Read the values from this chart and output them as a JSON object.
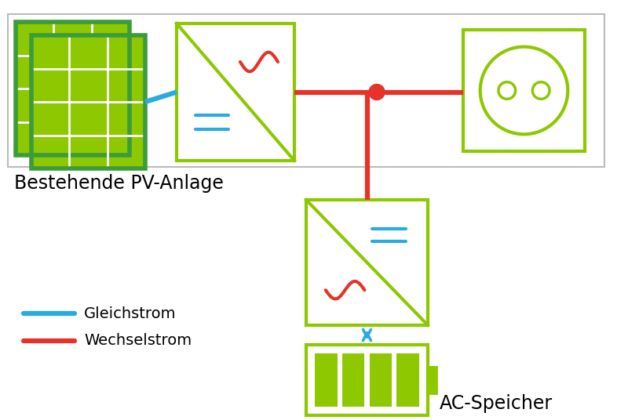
{
  "bg_color": "#ffffff",
  "green_dark": "#3a9c3a",
  "green_light": "#8dc800",
  "blue_line": "#29abe2",
  "red_line": "#e63329",
  "gray_border": "#bbbbbb",
  "title_pv": "Bestehende PV-Anlage",
  "title_storage": "AC-Speicher",
  "legend_dc": "Gleichstrom",
  "legend_ac": "Wechselstrom",
  "font_size_title": 17,
  "font_size_legend": 14,
  "fig_w": 8.0,
  "fig_h": 5.36,
  "dpi": 100
}
